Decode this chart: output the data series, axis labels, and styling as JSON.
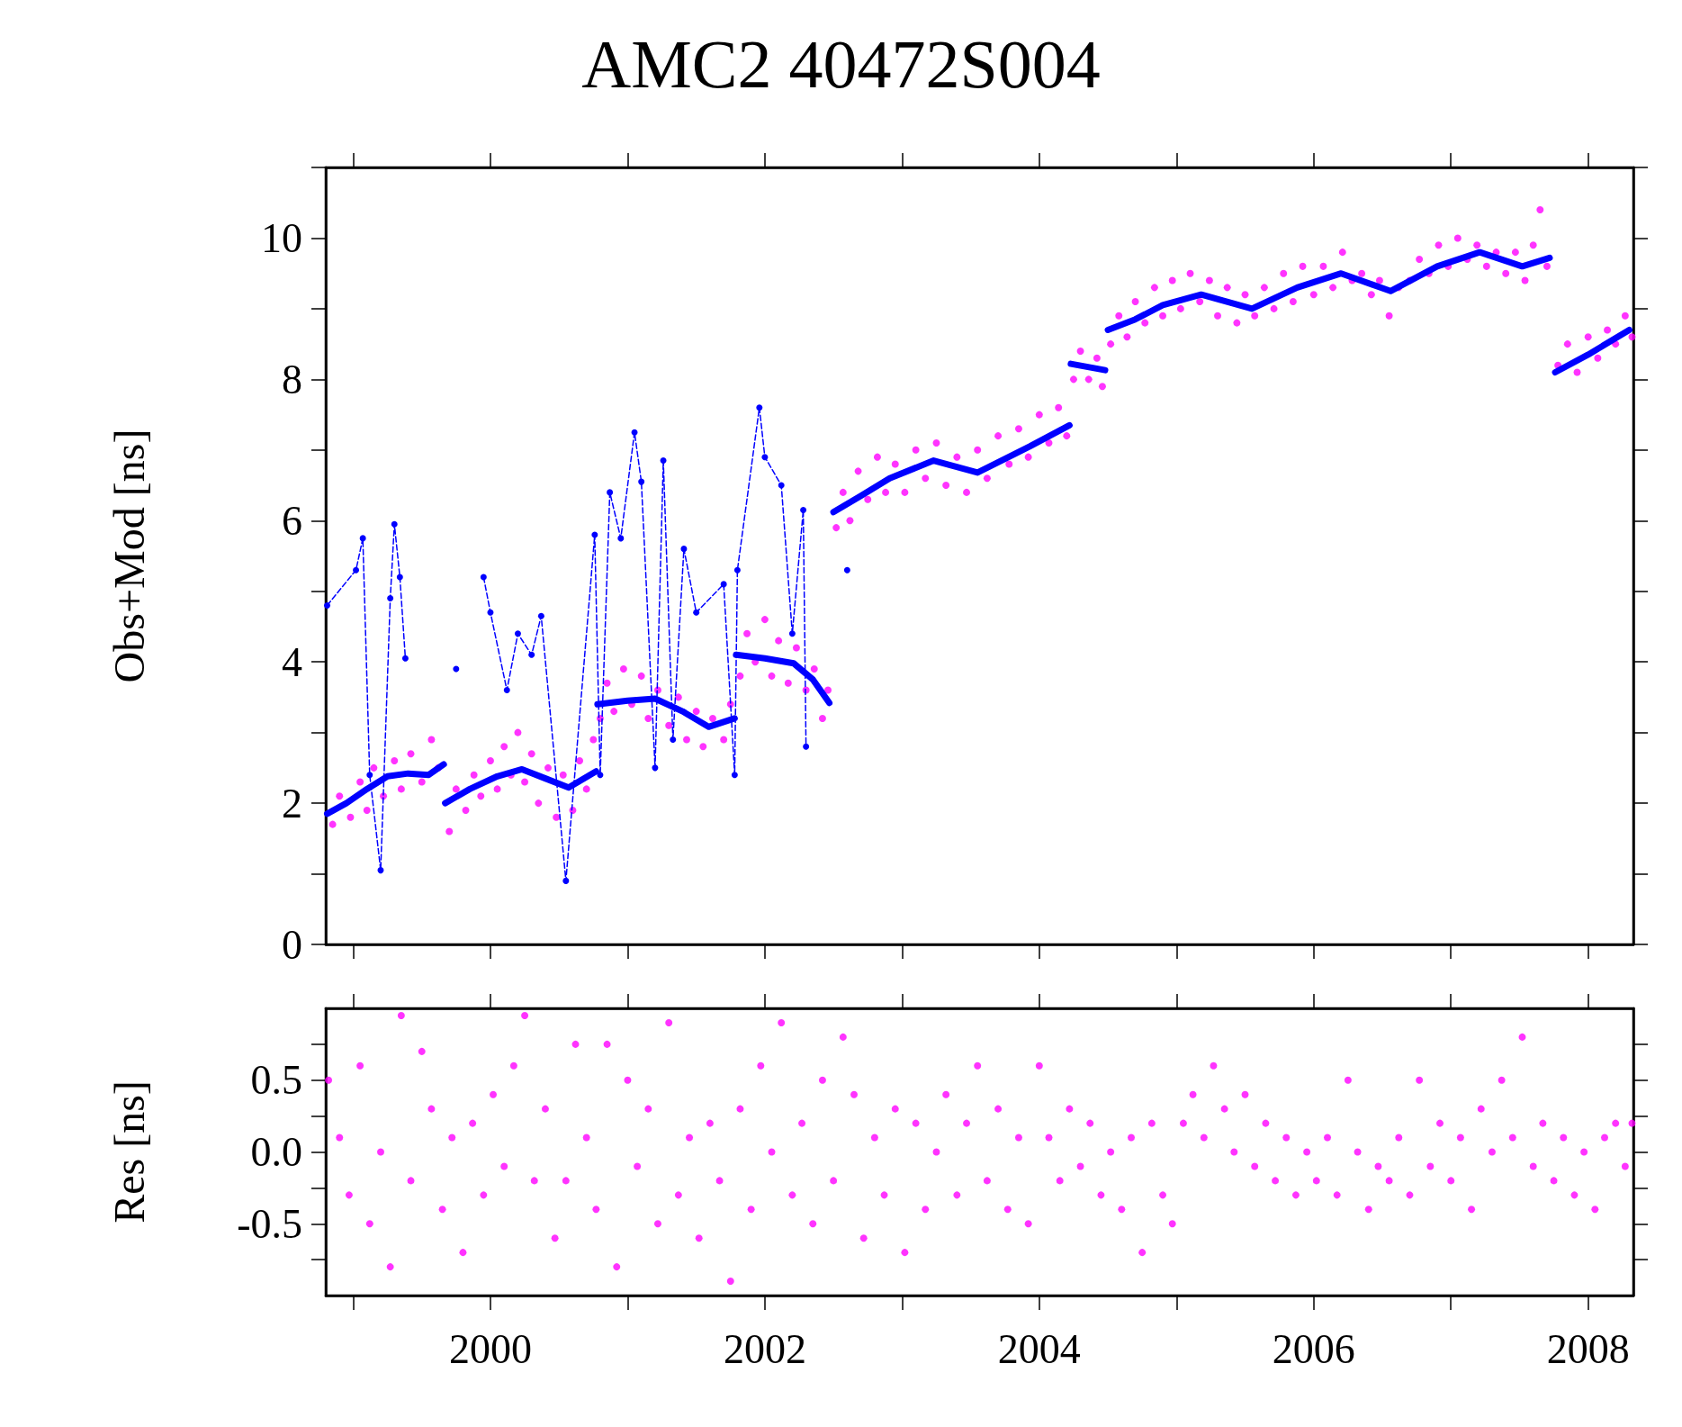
{
  "chart_data": [
    {
      "type": "scatter",
      "title": "AMC2 40472S004",
      "ylabel": "Obs+Mod [ns]",
      "tick_labels": "y",
      "xlim": [
        1998.8,
        2008.33
      ],
      "xticks": [
        1999,
        2000,
        2001,
        2002,
        2003,
        2004,
        2005,
        2006,
        2007,
        2008
      ],
      "ylim": [
        0,
        11
      ],
      "yticks": [
        0,
        {
          "value": 1,
          "label": null
        },
        2,
        {
          "value": 3,
          "label": null
        },
        4,
        {
          "value": 5,
          "label": null
        },
        6,
        {
          "value": 7,
          "label": null
        },
        8,
        {
          "value": 9,
          "label": null
        },
        10,
        {
          "value": 11,
          "label": null
        }
      ],
      "series": [
        {
          "type": "scatter",
          "color": "#ff00ff",
          "marker": "circle",
          "x": [
            1998.85,
            1998.9,
            1998.98,
            1999.05,
            1999.1,
            1999.15,
            1999.22,
            1999.3,
            1999.35,
            1999.42,
            1999.5,
            1999.57,
            1999.62,
            1999.7,
            1999.75,
            1999.82,
            1999.88,
            1999.93,
            2000.0,
            2000.05,
            2000.1,
            2000.15,
            2000.2,
            2000.25,
            2000.3,
            2000.35,
            2000.42,
            2000.48,
            2000.53,
            2000.6,
            2000.65,
            2000.7,
            2000.75,
            2000.8,
            2000.85,
            2000.9,
            2000.97,
            2001.03,
            2001.1,
            2001.15,
            2001.22,
            2001.3,
            2001.37,
            2001.43,
            2001.5,
            2001.55,
            2001.62,
            2001.7,
            2001.75,
            2001.82,
            2001.87,
            2001.93,
            2002.0,
            2002.05,
            2002.1,
            2002.17,
            2002.23,
            2002.3,
            2002.36,
            2002.42,
            2002.46,
            2002.52,
            2002.57,
            2002.62,
            2002.68,
            2002.75,
            2002.82,
            2002.88,
            2002.95,
            2003.02,
            2003.1,
            2003.17,
            2003.25,
            2003.32,
            2003.4,
            2003.47,
            2003.55,
            2003.62,
            2003.7,
            2003.78,
            2003.85,
            2003.92,
            2004.0,
            2004.07,
            2004.14,
            2004.2,
            2004.25,
            2004.3,
            2004.36,
            2004.42,
            2004.46,
            2004.52,
            2004.58,
            2004.64,
            2004.7,
            2004.77,
            2004.84,
            2004.9,
            2004.97,
            2005.03,
            2005.1,
            2005.17,
            2005.24,
            2005.3,
            2005.37,
            2005.44,
            2005.5,
            2005.57,
            2005.64,
            2005.71,
            2005.78,
            2005.85,
            2005.92,
            2006.0,
            2006.07,
            2006.14,
            2006.21,
            2006.28,
            2006.35,
            2006.42,
            2006.48,
            2006.55,
            2006.62,
            2006.7,
            2006.77,
            2006.84,
            2006.91,
            2006.98,
            2007.05,
            2007.12,
            2007.19,
            2007.26,
            2007.33,
            2007.4,
            2007.47,
            2007.54,
            2007.6,
            2007.65,
            2007.7,
            2007.78,
            2007.85,
            2007.92,
            2008.0,
            2008.07,
            2008.14,
            2008.2,
            2008.27,
            2008.32
          ],
          "values": [
            1.7,
            2.1,
            1.8,
            2.3,
            1.9,
            2.5,
            2.1,
            2.6,
            2.2,
            2.7,
            2.3,
            2.9,
            2.5,
            1.6,
            2.2,
            1.9,
            2.4,
            2.1,
            2.6,
            2.2,
            2.8,
            2.4,
            3.0,
            2.3,
            2.7,
            2.0,
            2.5,
            1.8,
            2.4,
            1.9,
            2.6,
            2.2,
            2.9,
            3.2,
            3.7,
            3.3,
            3.9,
            3.4,
            3.8,
            3.2,
            3.6,
            3.1,
            3.5,
            2.9,
            3.3,
            2.8,
            3.2,
            2.9,
            3.4,
            3.8,
            4.4,
            4.0,
            4.6,
            3.8,
            4.3,
            3.7,
            4.2,
            3.6,
            3.9,
            3.2,
            3.6,
            5.9,
            6.4,
            6.0,
            6.7,
            6.3,
            6.9,
            6.4,
            6.8,
            6.4,
            7.0,
            6.6,
            7.1,
            6.5,
            6.9,
            6.4,
            7.0,
            6.6,
            7.2,
            6.8,
            7.3,
            6.9,
            7.5,
            7.1,
            7.6,
            7.2,
            8.0,
            8.4,
            8.0,
            8.3,
            7.9,
            8.5,
            8.9,
            8.6,
            9.1,
            8.8,
            9.3,
            8.9,
            9.4,
            9.0,
            9.5,
            9.1,
            9.4,
            8.9,
            9.3,
            8.8,
            9.2,
            8.9,
            9.3,
            9.0,
            9.5,
            9.1,
            9.6,
            9.2,
            9.6,
            9.3,
            9.8,
            9.4,
            9.5,
            9.2,
            9.4,
            8.9,
            9.3,
            9.4,
            9.7,
            9.5,
            9.9,
            9.6,
            10.0,
            9.7,
            9.9,
            9.6,
            9.8,
            9.5,
            9.8,
            9.4,
            9.9,
            10.4,
            9.6,
            8.2,
            8.5,
            8.1,
            8.6,
            8.3,
            8.7,
            8.5,
            8.9,
            8.6
          ]
        },
        {
          "type": "line",
          "color": "#0000ff",
          "marker": "circle",
          "line_style": "dashed",
          "x": [
            1998.81,
            1999.02,
            1999.07,
            1999.12,
            1999.2,
            1999.27,
            1999.3,
            1999.34,
            1999.38,
            1999.45,
            1999.75,
            1999.78,
            1999.95,
            2000.0,
            2000.12,
            2000.2,
            2000.3,
            2000.37,
            2000.55,
            2000.76,
            2000.8,
            2000.87,
            2000.95,
            2001.05,
            2001.1,
            2001.2,
            2001.26,
            2001.33,
            2001.41,
            2001.5,
            2001.7,
            2001.78,
            2001.8,
            2001.96,
            2002.0,
            2002.12,
            2002.2,
            2002.28,
            2002.3,
            2002.5,
            2002.6
          ],
          "values": [
            4.8,
            5.3,
            5.75,
            2.4,
            1.05,
            4.9,
            5.95,
            5.2,
            4.05,
            null,
            3.9,
            null,
            5.2,
            4.7,
            3.6,
            4.4,
            4.1,
            4.65,
            0.9,
            5.8,
            2.4,
            6.4,
            5.75,
            7.25,
            6.55,
            2.5,
            6.85,
            2.9,
            5.6,
            4.7,
            5.1,
            2.4,
            5.3,
            7.6,
            6.9,
            6.5,
            4.4,
            6.15,
            2.8,
            null,
            5.3
          ]
        },
        {
          "type": "line",
          "color": "#0000ff",
          "marker": "none",
          "line_style": "solid",
          "x": [
            1998.81,
            1998.95,
            1999.1,
            1999.25,
            1999.4,
            1999.55,
            1999.66,
            1999.665,
            1999.67,
            1999.85,
            2000.05,
            2000.23,
            2000.4,
            2000.57,
            2000.77,
            2000.775,
            2000.78,
            2001.0,
            2001.2,
            2001.4,
            2001.59,
            2001.78,
            2001.785,
            2001.79,
            2002.0,
            2002.21,
            2002.35,
            2002.47,
            2002.485,
            2002.5,
            2002.7,
            2002.91,
            2003.23,
            2003.55,
            2003.93,
            2004.22,
            2004.225,
            2004.23,
            2004.48,
            2004.49,
            2004.5,
            2004.7,
            2004.9,
            2005.18,
            2005.55,
            2005.88,
            2006.2,
            2006.56,
            2006.9,
            2007.21,
            2007.52,
            2007.72,
            2007.74,
            2007.76,
            2008.0,
            2008.3
          ],
          "values": [
            1.85,
            2.0,
            2.2,
            2.38,
            2.42,
            2.4,
            2.55,
            null,
            2.0,
            2.2,
            2.38,
            2.48,
            2.35,
            2.22,
            2.45,
            null,
            3.4,
            3.45,
            3.48,
            3.3,
            3.08,
            3.2,
            null,
            4.1,
            4.05,
            3.98,
            3.75,
            3.42,
            null,
            6.12,
            6.35,
            6.6,
            6.85,
            6.68,
            7.05,
            7.35,
            null,
            8.22,
            8.13,
            null,
            8.7,
            8.85,
            9.05,
            9.2,
            9.0,
            9.3,
            9.5,
            9.25,
            9.6,
            9.8,
            9.6,
            9.72,
            null,
            8.1,
            8.35,
            8.7
          ]
        }
      ]
    },
    {
      "type": "scatter",
      "ylabel": "Res [ns]",
      "xlim": [
        1998.8,
        2008.33
      ],
      "xticks": [
        {
          "value": 1999,
          "label": null
        },
        2000,
        {
          "value": 2001,
          "label": null
        },
        2002,
        {
          "value": 2003,
          "label": null
        },
        2004,
        {
          "value": 2005,
          "label": null
        },
        2006,
        {
          "value": 2007,
          "label": null
        },
        2008
      ],
      "ylim": [
        -1,
        1
      ],
      "yticks": [
        {
          "value": -0.75,
          "label": null
        },
        -0.5,
        {
          "value": -0.25,
          "label": null
        },
        {
          "value": 0,
          "label": "0.0"
        },
        {
          "value": 0.25,
          "label": null
        },
        0.5,
        {
          "value": 0.75,
          "label": null
        }
      ],
      "series": [
        {
          "type": "scatter",
          "color": "#ff00ff",
          "marker": "circle",
          "x": [
            1998.82,
            1998.9,
            1998.97,
            1999.05,
            1999.12,
            1999.2,
            1999.27,
            1999.35,
            1999.42,
            1999.5,
            1999.57,
            1999.65,
            1999.72,
            1999.8,
            1999.87,
            1999.95,
            2000.02,
            2000.1,
            2000.17,
            2000.25,
            2000.32,
            2000.4,
            2000.47,
            2000.55,
            2000.62,
            2000.7,
            2000.77,
            2000.85,
            2000.92,
            2001.0,
            2001.07,
            2001.15,
            2001.22,
            2001.3,
            2001.37,
            2001.45,
            2001.52,
            2001.6,
            2001.67,
            2001.75,
            2001.82,
            2001.9,
            2001.97,
            2002.05,
            2002.12,
            2002.2,
            2002.27,
            2002.35,
            2002.42,
            2002.5,
            2002.57,
            2002.65,
            2002.72,
            2002.8,
            2002.87,
            2002.95,
            2003.02,
            2003.1,
            2003.17,
            2003.25,
            2003.32,
            2003.4,
            2003.47,
            2003.55,
            2003.62,
            2003.7,
            2003.77,
            2003.85,
            2003.92,
            2004.0,
            2004.07,
            2004.15,
            2004.22,
            2004.3,
            2004.37,
            2004.45,
            2004.52,
            2004.6,
            2004.67,
            2004.75,
            2004.82,
            2004.9,
            2004.97,
            2005.05,
            2005.12,
            2005.2,
            2005.27,
            2005.35,
            2005.42,
            2005.5,
            2005.57,
            2005.65,
            2005.72,
            2005.8,
            2005.87,
            2005.95,
            2006.02,
            2006.1,
            2006.17,
            2006.25,
            2006.32,
            2006.4,
            2006.47,
            2006.55,
            2006.62,
            2006.7,
            2006.77,
            2006.85,
            2006.92,
            2007.0,
            2007.07,
            2007.15,
            2007.22,
            2007.3,
            2007.37,
            2007.45,
            2007.52,
            2007.6,
            2007.67,
            2007.75,
            2007.82,
            2007.9,
            2007.97,
            2008.05,
            2008.12,
            2008.2,
            2008.27,
            2008.32
          ],
          "values": [
            0.5,
            0.1,
            -0.3,
            0.6,
            -0.5,
            0.0,
            -0.8,
            0.95,
            -0.2,
            0.7,
            0.3,
            -0.4,
            0.1,
            -0.7,
            0.2,
            -0.3,
            0.4,
            -0.1,
            0.6,
            0.95,
            -0.2,
            0.3,
            -0.6,
            -0.2,
            0.75,
            0.1,
            -0.4,
            0.75,
            -0.8,
            0.5,
            -0.1,
            0.3,
            -0.5,
            0.9,
            -0.3,
            0.1,
            -0.6,
            0.2,
            -0.2,
            -0.9,
            0.3,
            -0.4,
            0.6,
            0.0,
            0.9,
            -0.3,
            0.2,
            -0.5,
            0.5,
            -0.2,
            0.8,
            0.4,
            -0.6,
            0.1,
            -0.3,
            0.3,
            -0.7,
            0.2,
            -0.4,
            0.0,
            0.4,
            -0.3,
            0.2,
            0.6,
            -0.2,
            0.3,
            -0.4,
            0.1,
            -0.5,
            0.6,
            0.1,
            -0.2,
            0.3,
            -0.1,
            0.2,
            -0.3,
            0.0,
            -0.4,
            0.1,
            -0.7,
            0.2,
            -0.3,
            -0.5,
            0.2,
            0.4,
            0.1,
            0.6,
            0.3,
            0.0,
            0.4,
            -0.1,
            0.2,
            -0.2,
            0.1,
            -0.3,
            0.0,
            -0.2,
            0.1,
            -0.3,
            0.5,
            0.0,
            -0.4,
            -0.1,
            -0.2,
            0.1,
            -0.3,
            0.5,
            -0.1,
            0.2,
            -0.2,
            0.1,
            -0.4,
            0.3,
            0.0,
            0.5,
            0.1,
            0.8,
            -0.1,
            0.2,
            -0.2,
            0.1,
            -0.3,
            0.0,
            -0.4,
            0.1,
            0.2,
            -0.1,
            0.2
          ]
        }
      ]
    }
  ]
}
